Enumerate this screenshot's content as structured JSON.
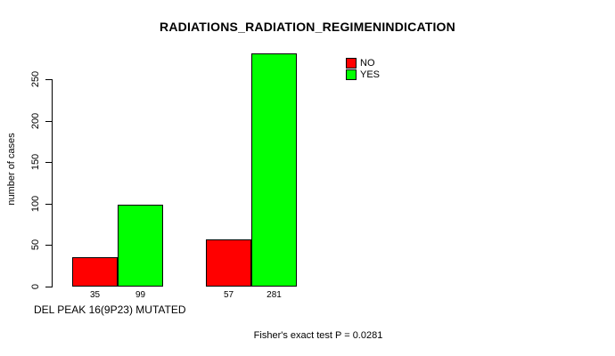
{
  "chart_data": {
    "type": "bar",
    "title": "RADIATIONS_RADIATION_REGIMENINDICATION",
    "ylabel": "number of cases",
    "xlabel": "DEL PEAK 16(9P23) MUTATED",
    "annotation": "Fisher's exact test P = 0.0281",
    "ylim": [
      0,
      250
    ],
    "yticks": [
      0,
      50,
      100,
      150,
      200,
      250
    ],
    "grid": false,
    "legend_position": "top-right",
    "groups": [
      "group-1",
      "group-2"
    ],
    "series": [
      {
        "name": "NO",
        "color": "#ff0000",
        "values": [
          35,
          57
        ]
      },
      {
        "name": "YES",
        "color": "#00ff00",
        "values": [
          99,
          281
        ]
      }
    ],
    "bar_value_labels": [
      "35",
      "99",
      "57",
      "281"
    ],
    "colors": {
      "no": "#ff0000",
      "yes": "#00ff00",
      "axis": "#000000",
      "background": "#ffffff"
    }
  }
}
